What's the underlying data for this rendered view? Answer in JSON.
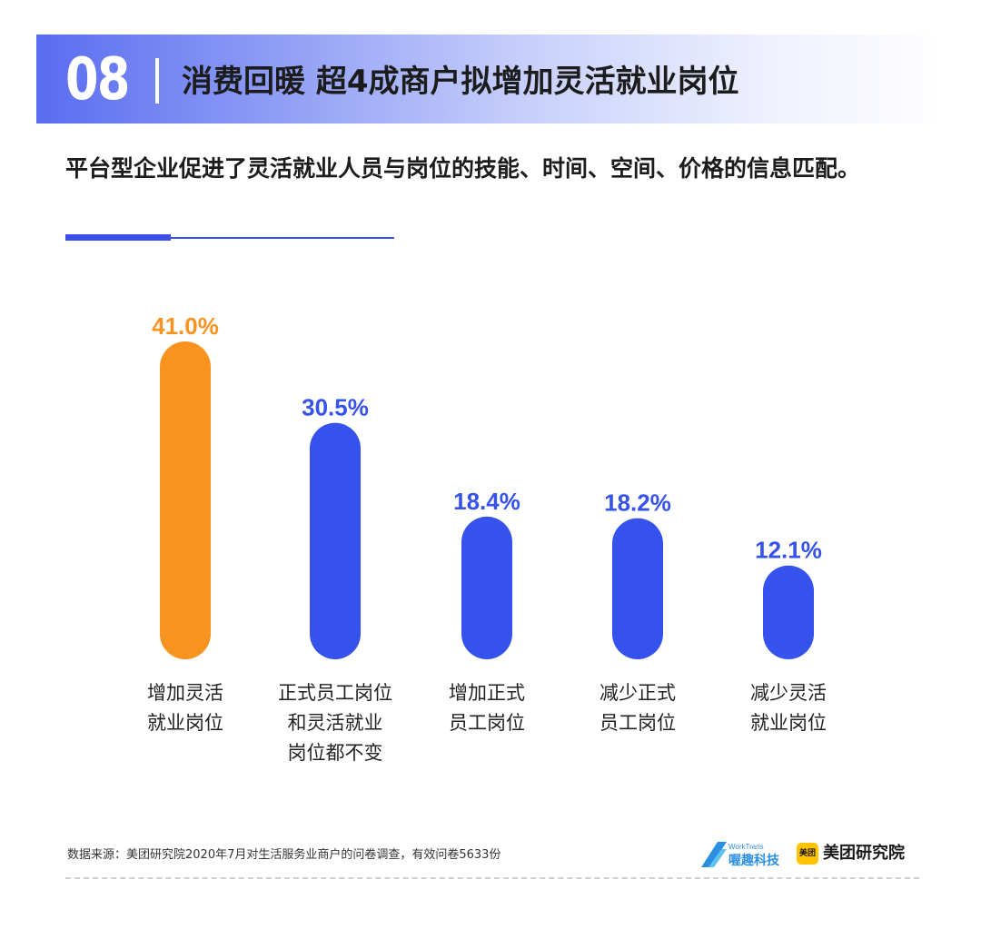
{
  "header": {
    "number": "08",
    "title": "消费回暖 超4成商户拟增加灵活就业岗位"
  },
  "subtitle": "平台型企业促进了灵活就业人员与岗位的技能、时间、空间、价格的信息匹配。",
  "chart_data": {
    "type": "bar",
    "categories": [
      [
        "增加灵活",
        "就业岗位"
      ],
      [
        "正式员工岗位",
        "和灵活就业",
        "岗位都不变"
      ],
      [
        "增加正式",
        "员工岗位"
      ],
      [
        "减少正式",
        "员工岗位"
      ],
      [
        "减少灵活",
        "就业岗位"
      ]
    ],
    "values": [
      41.0,
      30.5,
      18.4,
      18.2,
      12.1
    ],
    "value_labels": [
      "41.0%",
      "30.5%",
      "18.4%",
      "18.2%",
      "12.1%"
    ],
    "unit": "%",
    "bar_colors": [
      "#f7931e",
      "#3652ec",
      "#3652ec",
      "#3652ec",
      "#3652ec"
    ],
    "label_colors": [
      "#f7931e",
      "#3652ec",
      "#3652ec",
      "#3652ec",
      "#3652ec"
    ],
    "ylim": [
      0,
      41.0
    ],
    "grid": false,
    "legend": "none",
    "title": "",
    "xlabel": "",
    "ylabel": ""
  },
  "footer": {
    "source": "数据来源：美团研究院2020年7月对生活服务业商户的问卷调查，有效问卷5633份",
    "logo_worktrans_small": "WorkTrans",
    "logo_worktrans_name": "喔趣科技",
    "logo_meituan_badge": "美团",
    "logo_meituan_name": "美团研究院"
  },
  "colors": {
    "accent_blue": "#3d4fea",
    "highlight_orange": "#f7931e"
  }
}
